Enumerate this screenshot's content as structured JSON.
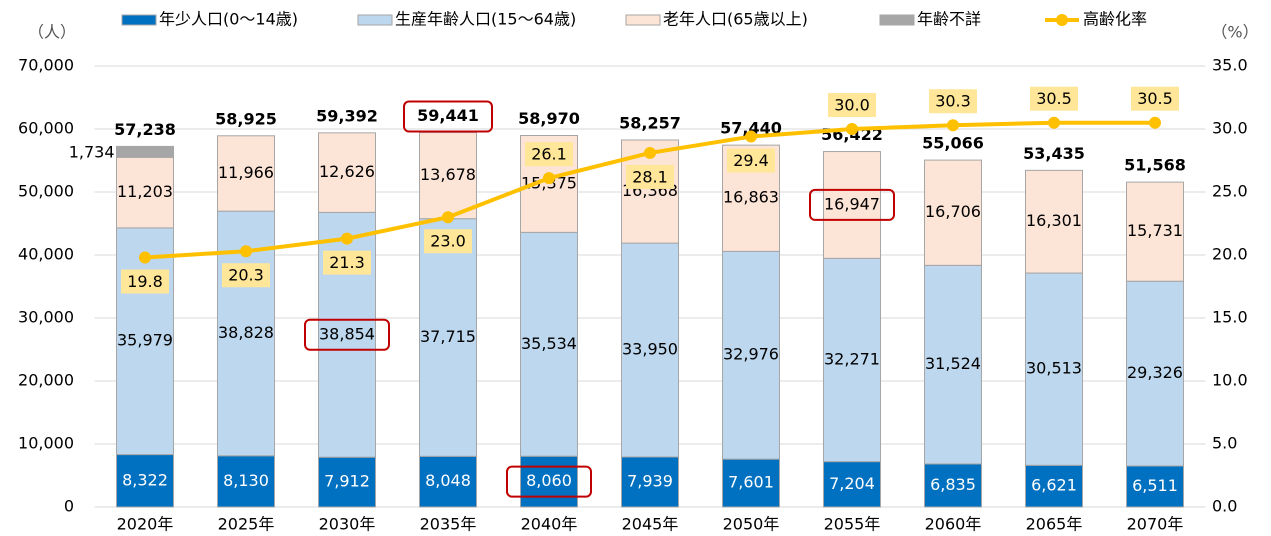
{
  "chart_data": {
    "type": "bar",
    "stacked": true,
    "categories": [
      "2020年",
      "2025年",
      "2030年",
      "2035年",
      "2040年",
      "2045年",
      "2050年",
      "2055年",
      "2060年",
      "2065年",
      "2070年"
    ],
    "y_unit_label": "（人）",
    "y2_unit_label": "（%）",
    "ylim": [
      0,
      70000
    ],
    "yticks": [
      0,
      {
        "value": 10000,
        "label": "10,000"
      },
      {
        "value": 20000,
        "label": "20,000"
      },
      {
        "value": 30000,
        "label": "30,000"
      },
      {
        "value": 40000,
        "label": "40,000"
      },
      {
        "value": 50000,
        "label": "50,000"
      },
      {
        "value": 60000,
        "label": "60,000"
      },
      {
        "value": 70000,
        "label": "70,000"
      }
    ],
    "y2lim": [
      0,
      35
    ],
    "y2ticks": [
      {
        "value": 0,
        "label": "0.0"
      },
      {
        "value": 5,
        "label": "5.0"
      },
      {
        "value": 10,
        "label": "10.0"
      },
      {
        "value": 15,
        "label": "15.0"
      },
      {
        "value": 20,
        "label": "20.0"
      },
      {
        "value": 25,
        "label": "25.0"
      },
      {
        "value": 30,
        "label": "30.0"
      },
      {
        "value": 35,
        "label": "35.0"
      }
    ],
    "series": [
      {
        "name": "年少人口(0～14歳)",
        "color": "#0070c0",
        "label_color": "#ffffff",
        "values": [
          8322,
          8130,
          7912,
          8048,
          8060,
          7939,
          7601,
          7204,
          6835,
          6621,
          6511
        ],
        "value_labels": [
          "8,322",
          "8,130",
          "7,912",
          "8,048",
          "8,060",
          "7,939",
          "7,601",
          "7,204",
          "6,835",
          "6,621",
          "6,511"
        ],
        "highlight": [
          4
        ]
      },
      {
        "name": "生産年齢人口(15～64歳)",
        "color": "#bdd7ee",
        "label_color": "#000000",
        "values": [
          35979,
          38828,
          38854,
          37715,
          35534,
          33950,
          32976,
          32271,
          31524,
          30513,
          29326
        ],
        "value_labels": [
          "35,979",
          "38,828",
          "38,854",
          "37,715",
          "35,534",
          "33,950",
          "32,976",
          "32,271",
          "31,524",
          "30,513",
          "29,326"
        ],
        "highlight": [
          2
        ]
      },
      {
        "name": "老年人口(65歳以上)",
        "color": "#fce4d6",
        "label_color": "#000000",
        "values": [
          11203,
          11966,
          12626,
          13678,
          15375,
          16368,
          16863,
          16947,
          16706,
          16301,
          15731
        ],
        "value_labels": [
          "11,203",
          "11,966",
          "12,626",
          "13,678",
          "15,375",
          "16,368",
          "16,863",
          "16,947",
          "16,706",
          "16,301",
          "15,731"
        ],
        "highlight": [
          7
        ]
      },
      {
        "name": "年齢不詳",
        "color": "#a6a6a6",
        "label_color": "#000000",
        "values": [
          1734,
          null,
          null,
          null,
          null,
          null,
          null,
          null,
          null,
          null,
          null
        ],
        "value_labels": [
          "1,734",
          null,
          null,
          null,
          null,
          null,
          null,
          null,
          null,
          null,
          null
        ],
        "highlight": []
      },
      {
        "name": "高齢化率",
        "type": "line",
        "axis": "y2",
        "color": "#ffc000",
        "label_fill": "#ffe699",
        "values": [
          19.8,
          20.3,
          21.3,
          23.0,
          26.1,
          28.1,
          29.4,
          30.0,
          30.3,
          30.5,
          30.5
        ],
        "value_labels": [
          "19.8",
          "20.3",
          "21.3",
          "23.0",
          "26.1",
          "28.1",
          "29.4",
          "30.0",
          "30.3",
          "30.5",
          "30.5"
        ]
      }
    ],
    "totals": {
      "values": [
        57238,
        58925,
        59392,
        59441,
        58970,
        58257,
        57440,
        56422,
        55066,
        53435,
        51568
      ],
      "value_labels": [
        "57,238",
        "58,925",
        "59,392",
        "59,441",
        "58,970",
        "58,257",
        "57,440",
        "56,422",
        "55,066",
        "53,435",
        "51,568"
      ],
      "highlight": [
        3
      ]
    },
    "highlight_color": "#c00000",
    "legend": "top"
  }
}
